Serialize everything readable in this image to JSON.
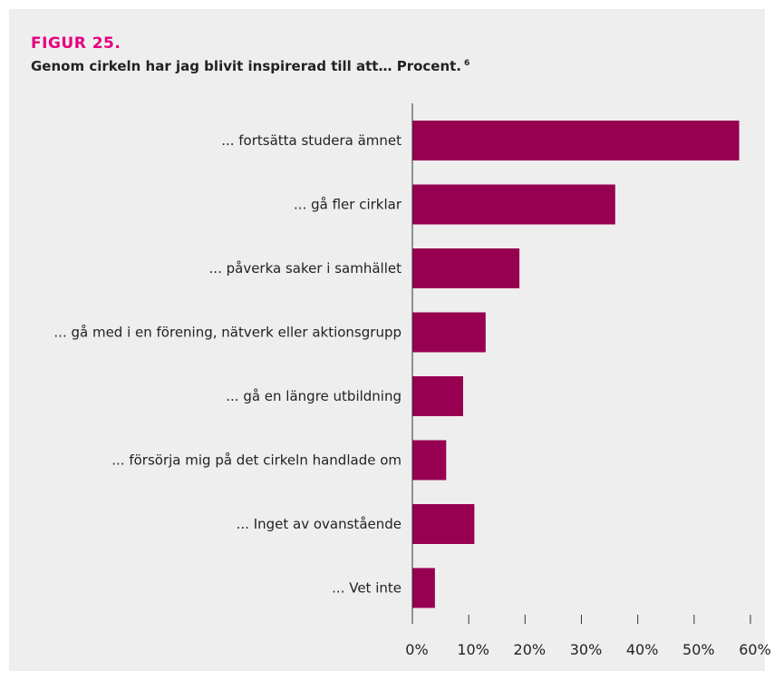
{
  "figure": {
    "label": "FIGUR 25.",
    "title": "Genom cirkeln har jag blivit inspirerad till att… Procent.",
    "footnote": "6"
  },
  "colors": {
    "bar": "#970050",
    "accent": "#e6007e",
    "panel_background": "#eeeeee",
    "axis": "#333333"
  },
  "chart_data": {
    "type": "bar",
    "orientation": "horizontal",
    "title": "Genom cirkeln har jag blivit inspirerad till att… Procent.",
    "categories": [
      "... fortsätta studera ämnet",
      "... gå fler cirklar",
      "... påverka saker i samhället",
      "... gå med i en förening, nätverk eller aktionsgrupp",
      "... gå en längre utbildning",
      "... försörja mig på det cirkeln handlade om",
      "... Inget av ovanstående",
      "... Vet inte"
    ],
    "values": [
      58,
      36,
      19,
      13,
      9,
      6,
      11,
      4
    ],
    "xlim": [
      0,
      60
    ],
    "xticks": [
      0,
      10,
      20,
      30,
      40,
      50,
      60
    ],
    "xtick_labels": [
      "0%",
      "10%",
      "20%",
      "30%",
      "40%",
      "50%",
      "60%"
    ],
    "xlabel": "",
    "ylabel": "",
    "grid": false,
    "legend": "none"
  }
}
